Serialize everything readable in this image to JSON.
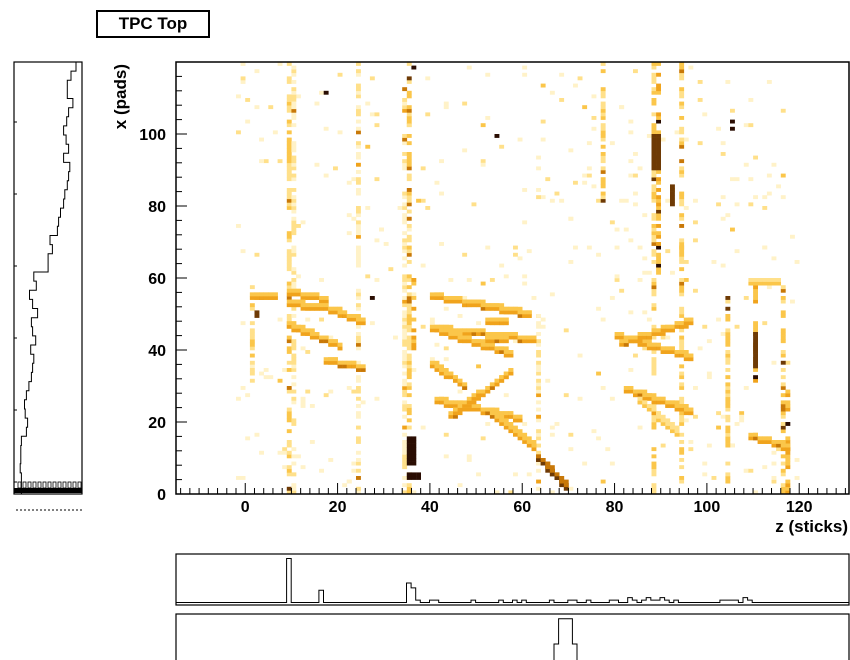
{
  "title": "TPC Top",
  "chart_data": [
    {
      "type": "heatmap",
      "name": "main-2d",
      "title": "TPC Top",
      "xlabel": "z (sticks)",
      "ylabel": "x (pads)",
      "xlim": [
        -15,
        131
      ],
      "ylim": [
        0,
        120
      ],
      "xticks": [
        "0",
        "20",
        "40",
        "60",
        "80",
        "100",
        "120"
      ],
      "yticks": [
        "0",
        "20",
        "40",
        "60",
        "80",
        "100"
      ],
      "grid": false,
      "palette": [
        "#fff2c8",
        "#ffe08a",
        "#fbc64a",
        "#f0a31c",
        "#c87808",
        "#6e3a05",
        "#2a0d02"
      ],
      "tracks": [
        {
          "from": [
            1,
            54
          ],
          "to": [
            6,
            54
          ],
          "level": 3
        },
        {
          "from": [
            9,
            55
          ],
          "to": [
            17,
            53
          ],
          "level": 3
        },
        {
          "from": [
            9,
            52
          ],
          "to": [
            20,
            50
          ],
          "level": 3
        },
        {
          "from": [
            9,
            46
          ],
          "to": [
            20,
            40
          ],
          "level": 3
        },
        {
          "from": [
            17,
            36
          ],
          "to": [
            25,
            34
          ],
          "level": 3
        },
        {
          "from": [
            20,
            49
          ],
          "to": [
            25,
            47
          ],
          "level": 3
        },
        {
          "from": [
            40,
            54
          ],
          "to": [
            61,
            49
          ],
          "level": 3
        },
        {
          "from": [
            40,
            45
          ],
          "to": [
            62,
            42
          ],
          "level": 3
        },
        {
          "from": [
            42,
            44
          ],
          "to": [
            57,
            38
          ],
          "level": 3
        },
        {
          "from": [
            40,
            35
          ],
          "to": [
            47,
            29
          ],
          "level": 3
        },
        {
          "from": [
            41,
            25
          ],
          "to": [
            59,
            20
          ],
          "level": 3
        },
        {
          "from": [
            44,
            21
          ],
          "to": [
            57,
            33
          ],
          "level": 3
        },
        {
          "from": [
            52,
            22
          ],
          "to": [
            62,
            12
          ],
          "level": 3
        },
        {
          "from": [
            63,
            9
          ],
          "to": [
            69,
            1
          ],
          "level": 5
        },
        {
          "from": [
            52,
            47
          ],
          "to": [
            56,
            47
          ],
          "level": 3
        },
        {
          "from": [
            52,
            42
          ],
          "to": [
            56,
            42
          ],
          "level": 3
        },
        {
          "from": [
            80,
            43
          ],
          "to": [
            96,
            37
          ],
          "level": 3
        },
        {
          "from": [
            81,
            41
          ],
          "to": [
            96,
            47
          ],
          "level": 3
        },
        {
          "from": [
            82,
            28
          ],
          "to": [
            96,
            22
          ],
          "level": 3
        },
        {
          "from": [
            85,
            25
          ],
          "to": [
            93,
            16
          ],
          "level": 2
        },
        {
          "from": [
            109,
            15
          ],
          "to": [
            117,
            12
          ],
          "level": 3
        },
        {
          "from": [
            109,
            58
          ],
          "to": [
            115,
            58
          ],
          "level": 2
        }
      ],
      "columns": [
        {
          "z": 1,
          "from": 30,
          "to": 58,
          "level": 2
        },
        {
          "z": 9,
          "from": 0,
          "to": 120,
          "level": 2
        },
        {
          "z": 10,
          "from": 0,
          "to": 120,
          "level": 1
        },
        {
          "z": 24,
          "from": 0,
          "to": 120,
          "level": 1
        },
        {
          "z": 34,
          "from": 0,
          "to": 120,
          "level": 1
        },
        {
          "z": 35,
          "from": 0,
          "to": 120,
          "level": 2
        },
        {
          "z": 36,
          "from": 40,
          "to": 60,
          "level": 3
        },
        {
          "z": 63,
          "from": 0,
          "to": 50,
          "level": 1
        },
        {
          "z": 77,
          "from": 80,
          "to": 120,
          "level": 2
        },
        {
          "z": 88,
          "from": 0,
          "to": 120,
          "level": 2
        },
        {
          "z": 89,
          "from": 60,
          "to": 120,
          "level": 3
        },
        {
          "z": 94,
          "from": 0,
          "to": 120,
          "level": 2
        },
        {
          "z": 104,
          "from": 0,
          "to": 55,
          "level": 2
        },
        {
          "z": 110,
          "from": 30,
          "to": 58,
          "level": 3
        },
        {
          "z": 116,
          "from": 0,
          "to": 58,
          "level": 2
        },
        {
          "z": 117,
          "from": 0,
          "to": 30,
          "level": 3
        }
      ],
      "hot_spots": [
        {
          "z": 35,
          "x": 8,
          "w": 2,
          "h": 8,
          "level": 6
        },
        {
          "z": 35,
          "x": 4,
          "w": 3,
          "h": 2,
          "level": 6
        },
        {
          "z": 88,
          "x": 90,
          "w": 2,
          "h": 10,
          "level": 5
        },
        {
          "z": 110,
          "x": 35,
          "w": 1,
          "h": 10,
          "level": 5
        },
        {
          "z": 92,
          "x": 80,
          "w": 1,
          "h": 6,
          "level": 5
        },
        {
          "z": 2,
          "x": 49,
          "w": 1,
          "h": 2,
          "level": 5
        }
      ]
    },
    {
      "type": "step",
      "name": "x-projection",
      "orientation": "vertical",
      "xlim": [
        0,
        120
      ],
      "values": [
        0.12,
        0.1,
        0.11,
        0.11,
        0.12,
        0.2,
        0.22,
        0.18,
        0.17,
        0.2,
        0.24,
        0.28,
        0.3,
        0.32,
        0.27,
        0.35,
        0.3,
        0.28,
        0.38,
        0.3,
        0.25,
        0.36,
        0.32,
        0.55,
        0.55,
        0.62,
        0.58,
        0.7,
        0.72,
        0.75,
        0.8,
        0.82,
        0.86,
        0.88,
        0.9,
        0.8,
        0.88,
        0.84,
        0.8,
        0.85,
        0.88,
        0.95,
        0.86,
        0.86,
        0.92,
        1.0
      ]
    },
    {
      "type": "step",
      "name": "z-projection-1",
      "xlim": [
        -15,
        131
      ],
      "values": [
        0.05,
        0.05,
        0.05,
        0.05,
        0.05,
        0.05,
        0.05,
        0.05,
        0.05,
        0.05,
        0.05,
        0.05,
        0.05,
        0.05,
        0.05,
        0.05,
        0.05,
        0.05,
        0.05,
        0.05,
        0.05,
        0.05,
        0.05,
        0.05,
        0.95,
        0.05,
        0.05,
        0.05,
        0.05,
        0.05,
        0.05,
        0.3,
        0.05,
        0.05,
        0.05,
        0.05,
        0.05,
        0.05,
        0.05,
        0.05,
        0.05,
        0.05,
        0.05,
        0.05,
        0.05,
        0.05,
        0.05,
        0.05,
        0.05,
        0.05,
        0.45,
        0.35,
        0.1,
        0.05,
        0.05,
        0.1,
        0.1,
        0.05,
        0.05,
        0.05,
        0.05,
        0.05,
        0.05,
        0.05,
        0.1,
        0.05,
        0.05,
        0.05,
        0.05,
        0.05,
        0.1,
        0.05,
        0.05,
        0.1,
        0.05,
        0.1,
        0.05,
        0.05,
        0.05,
        0.05,
        0.05,
        0.1,
        0.05,
        0.05,
        0.05,
        0.1,
        0.1,
        0.05,
        0.05,
        0.1,
        0.05,
        0.05,
        0.05,
        0.05,
        0.1,
        0.1,
        0.05,
        0.05,
        0.15,
        0.1,
        0.05,
        0.1,
        0.15,
        0.1,
        0.1,
        0.15,
        0.1,
        0.05,
        0.1,
        0.05,
        0.05,
        0.05,
        0.05,
        0.05,
        0.05,
        0.05,
        0.05,
        0.05,
        0.1,
        0.1,
        0.1,
        0.1,
        0.05,
        0.15,
        0.1,
        0.05,
        0.05,
        0.05,
        0.05,
        0.05,
        0.05,
        0.05,
        0.05,
        0.05,
        0.05,
        0.05,
        0.05,
        0.05,
        0.05,
        0.05,
        0.05,
        0.05,
        0.05,
        0.05,
        0.05,
        0.05
      ]
    },
    {
      "type": "step",
      "name": "z-projection-2",
      "xlim": [
        -15,
        131
      ],
      "values": [
        0,
        0,
        0,
        0,
        0,
        0,
        0,
        0,
        0,
        0,
        0,
        0,
        0,
        0,
        0,
        0,
        0,
        0,
        0,
        0,
        0,
        0,
        0,
        0,
        0,
        0,
        0,
        0,
        0,
        0,
        0,
        0,
        0,
        0,
        0,
        0,
        0,
        0,
        0,
        0,
        0,
        0,
        0,
        0,
        0,
        0,
        0,
        0,
        0,
        0,
        0,
        0,
        0,
        0,
        0,
        0,
        0,
        0,
        0,
        0,
        0,
        0,
        0,
        0,
        0,
        0,
        0,
        0,
        0,
        0,
        0,
        0,
        0,
        0,
        0,
        0,
        0,
        0,
        0,
        0,
        0,
        0.2,
        0.5,
        0.95,
        0.95,
        0.95,
        0.5,
        0.2,
        0.15,
        0.1,
        0.1,
        0.05,
        0,
        0,
        0,
        0,
        0,
        0,
        0,
        0,
        0,
        0,
        0,
        0,
        0,
        0,
        0,
        0,
        0,
        0,
        0,
        0,
        0,
        0,
        0,
        0,
        0,
        0,
        0,
        0,
        0,
        0,
        0,
        0,
        0,
        0,
        0,
        0,
        0,
        0,
        0,
        0,
        0,
        0,
        0,
        0,
        0,
        0,
        0,
        0,
        0,
        0,
        0,
        0,
        0,
        0
      ]
    }
  ]
}
